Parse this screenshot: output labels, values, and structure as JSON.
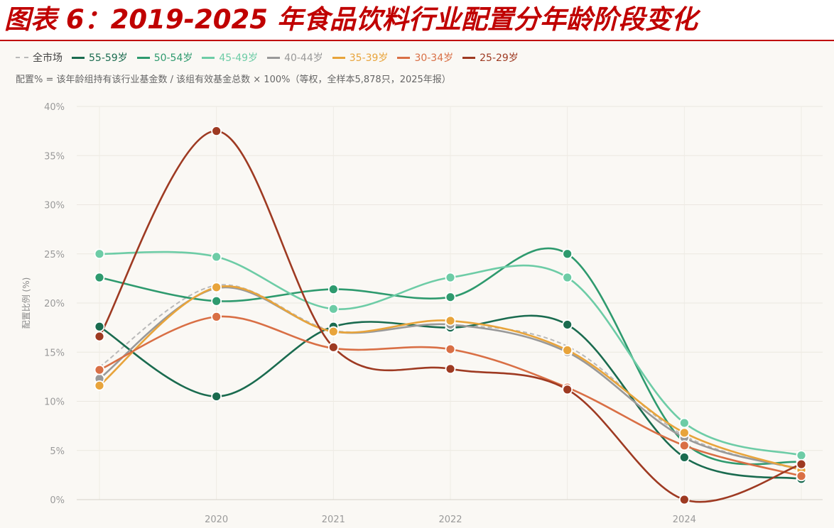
{
  "figure": {
    "title": "图表 6：2019-2025 年食品饮料行业配置分年龄阶段变化",
    "note": "配置% = 该年龄组持有该行业基金数 / 该组有效基金总数 × 100%（等权，全样本5,878只，2025年报）"
  },
  "chart_data": {
    "type": "line",
    "x": [
      2019,
      2020,
      2021,
      2022,
      2023,
      2024,
      2025
    ],
    "xtick_labels": [
      "",
      "2020",
      "2021",
      "2022",
      "",
      "2024",
      ""
    ],
    "ylabel": "配置比例 (%)",
    "ylim": [
      0,
      40
    ],
    "yticks": [
      0,
      5,
      10,
      15,
      20,
      25,
      30,
      35,
      40
    ],
    "ytick_labels": [
      "0%",
      "5%",
      "10%",
      "15%",
      "20%",
      "25%",
      "30%",
      "35%",
      "40%"
    ],
    "grid": true,
    "legend_position": "top-left",
    "series": [
      {
        "name": "全市场",
        "color": "#b9b9b9",
        "dashed": true,
        "markers": false,
        "values": [
          13.5,
          21.8,
          17.2,
          17.8,
          15.6,
          6.5,
          3.0
        ]
      },
      {
        "name": "55-59岁",
        "color": "#1a6b4f",
        "dashed": false,
        "markers": true,
        "values": [
          17.6,
          10.5,
          17.6,
          17.5,
          17.8,
          4.3,
          2.1
        ]
      },
      {
        "name": "50-54岁",
        "color": "#2e9a6e",
        "dashed": false,
        "markers": true,
        "values": [
          22.6,
          20.2,
          21.4,
          20.6,
          25.0,
          5.8,
          3.8
        ]
      },
      {
        "name": "45-49岁",
        "color": "#6dcca6",
        "dashed": false,
        "markers": true,
        "values": [
          25.0,
          24.7,
          19.4,
          22.6,
          22.6,
          7.8,
          4.5
        ]
      },
      {
        "name": "40-44岁",
        "color": "#999999",
        "dashed": false,
        "markers": true,
        "values": [
          12.3,
          21.5,
          17.1,
          17.8,
          15.0,
          6.3,
          3.1
        ]
      },
      {
        "name": "35-39岁",
        "color": "#e8a43b",
        "dashed": false,
        "markers": true,
        "values": [
          11.6,
          21.6,
          17.1,
          18.2,
          15.2,
          6.8,
          3.0
        ]
      },
      {
        "name": "30-34岁",
        "color": "#d96f45",
        "dashed": false,
        "markers": true,
        "values": [
          13.2,
          18.6,
          15.4,
          15.3,
          11.4,
          5.5,
          2.4
        ]
      },
      {
        "name": "25-29岁",
        "color": "#9e3a22",
        "dashed": false,
        "markers": true,
        "values": [
          16.6,
          37.5,
          15.5,
          13.3,
          11.2,
          0.0,
          3.6
        ]
      }
    ]
  }
}
